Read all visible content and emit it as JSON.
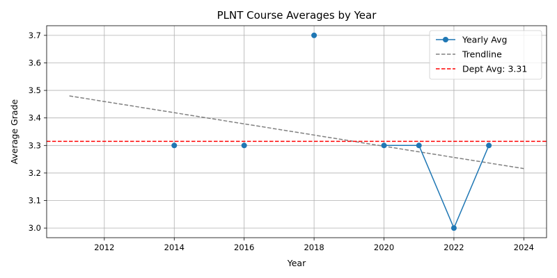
{
  "chart_data": {
    "type": "line",
    "title": "PLNT Course Averages by Year",
    "xlabel": "Year",
    "ylabel": "Average Grade",
    "xlim": [
      2010.35,
      2024.65
    ],
    "ylim": [
      2.965,
      3.735
    ],
    "x_ticks": [
      2012,
      2014,
      2016,
      2018,
      2020,
      2022,
      2024
    ],
    "y_ticks": [
      3.0,
      3.1,
      3.2,
      3.3,
      3.4,
      3.5,
      3.6,
      3.7
    ],
    "grid": true,
    "legend_position": "top-right",
    "series": [
      {
        "name": "Yearly Avg",
        "color": "#1f77b4",
        "style": "solid-with-markers",
        "x": [
          2014,
          2016,
          2018,
          2020,
          2021,
          2022,
          2023
        ],
        "y": [
          3.3,
          3.3,
          3.7,
          3.3,
          3.3,
          3.0,
          3.3
        ],
        "segments": [
          [
            0
          ],
          [
            1
          ],
          [
            2
          ],
          [
            3,
            4,
            5,
            6
          ]
        ]
      },
      {
        "name": "Trendline",
        "color": "#808080",
        "style": "dashed",
        "x": [
          2011,
          2024
        ],
        "y": [
          3.48,
          3.216
        ]
      },
      {
        "name": "Dept Avg: 3.31",
        "color": "#ff0000",
        "style": "dashed-horizontal",
        "y_value": 3.315
      }
    ]
  }
}
